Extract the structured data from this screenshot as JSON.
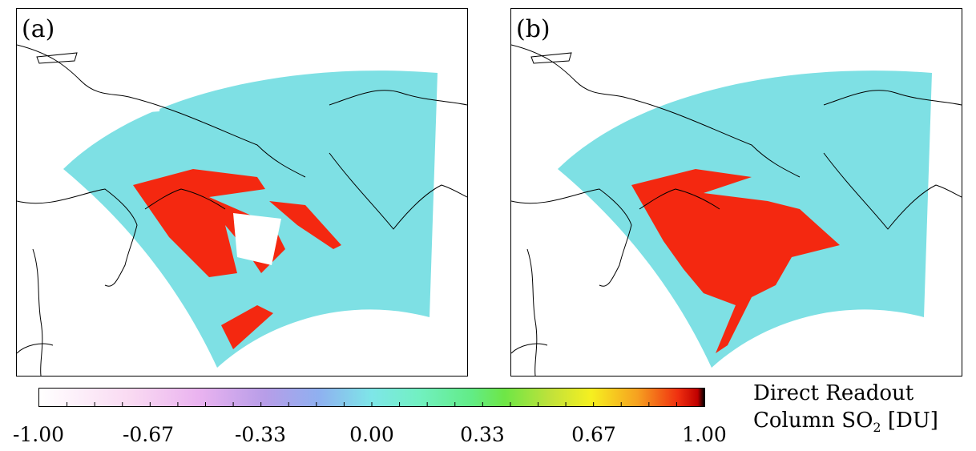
{
  "panels": [
    {
      "id": "a",
      "label": "(a)"
    },
    {
      "id": "b",
      "label": "(b)"
    }
  ],
  "colorbar": {
    "title_line1": "Direct Readout",
    "title_line2_prefix": "Column SO",
    "title_line2_sub": "2",
    "title_line2_suffix": " [DU]",
    "range": [
      -1.0,
      1.0
    ],
    "ticks": [
      "-1.00",
      "-0.67",
      "-0.33",
      "0.00",
      "0.33",
      "0.67",
      "1.00"
    ],
    "colors": {
      "low": "#ffffff",
      "mid": "#7ee6e8",
      "high": "#f03010",
      "cap": "#000000"
    }
  },
  "map_colors": {
    "background_swath": "#7ee0e4",
    "plume": "#f42810",
    "coastline": "#000000"
  }
}
